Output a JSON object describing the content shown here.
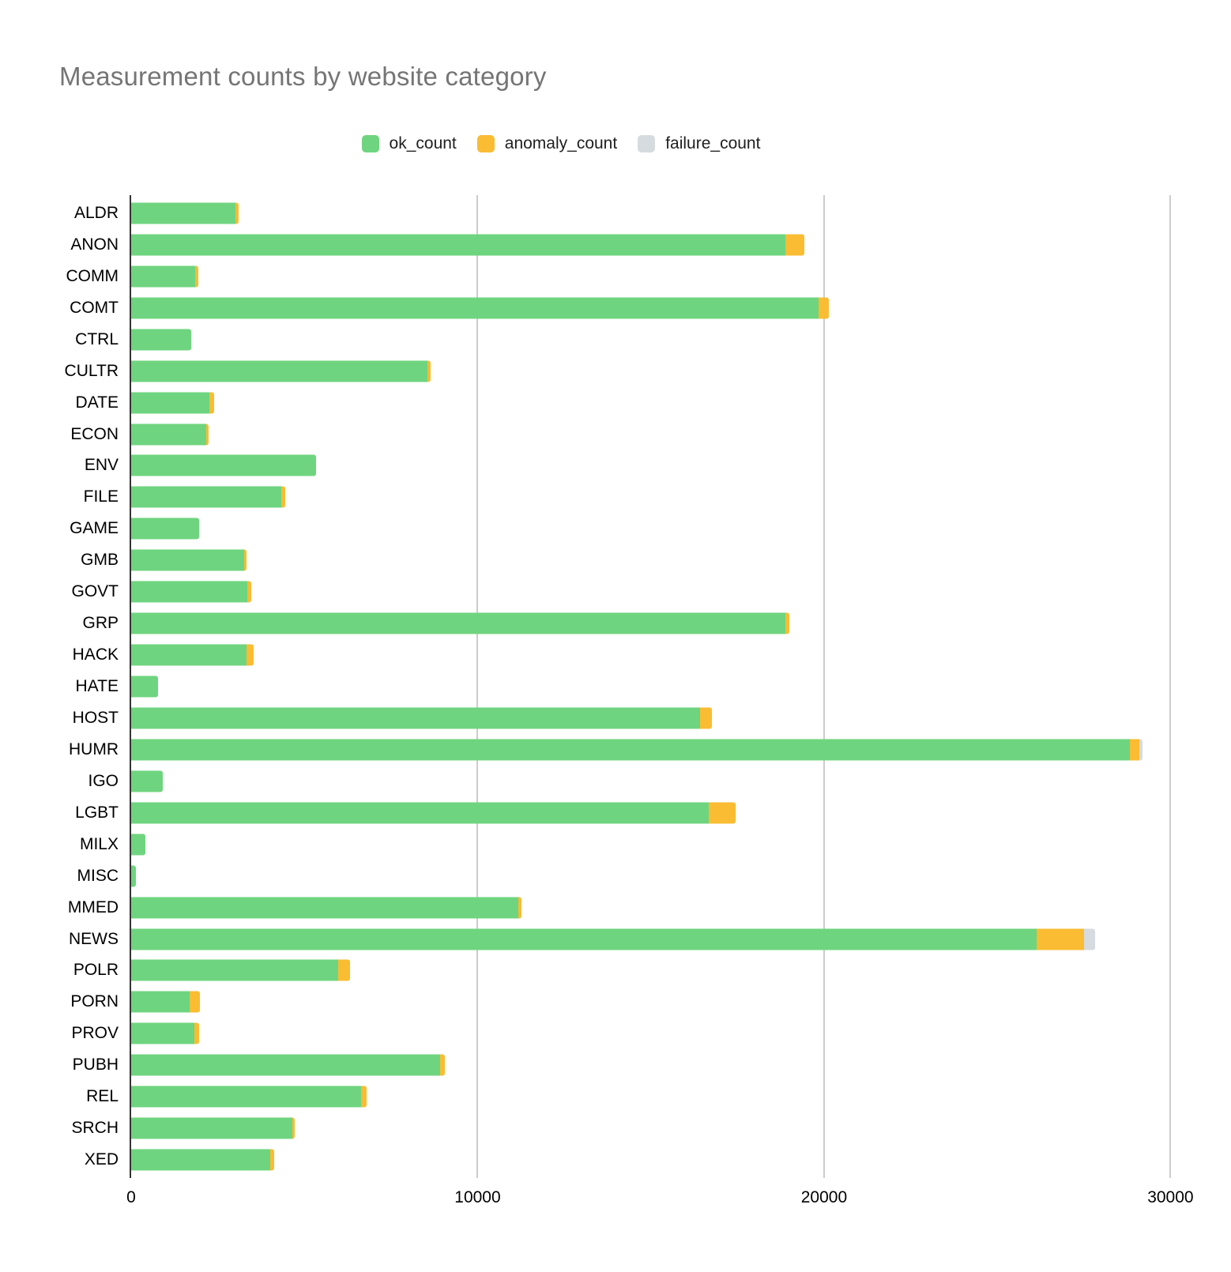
{
  "title": "Measurement counts by website category",
  "legend": {
    "items": [
      {
        "label": "ok_count",
        "color": "#6FD47F"
      },
      {
        "label": "anomaly_count",
        "color": "#F9BC33"
      },
      {
        "label": "failure_count",
        "color": "#D6DBE0"
      }
    ]
  },
  "chart_data": {
    "type": "bar",
    "orientation": "horizontal",
    "stacked": true,
    "title": "Measurement counts by website category",
    "xlabel": "",
    "ylabel": "",
    "categories": [
      "ALDR",
      "ANON",
      "COMM",
      "COMT",
      "CTRL",
      "CULTR",
      "DATE",
      "ECON",
      "ENV",
      "FILE",
      "GAME",
      "GMB",
      "GOVT",
      "GRP",
      "HACK",
      "HATE",
      "HOST",
      "HUMR",
      "IGO",
      "LGBT",
      "MILX",
      "MISC",
      "MMED",
      "NEWS",
      "POLR",
      "PORN",
      "PROV",
      "PUBH",
      "REL",
      "SRCH",
      "XED"
    ],
    "series": [
      {
        "name": "ok_count",
        "color": "#6FD47F",
        "values": [
          3010,
          18890,
          1850,
          19840,
          1730,
          8550,
          2260,
          2170,
          5340,
          4330,
          1960,
          3260,
          3350,
          18890,
          3330,
          780,
          16420,
          28830,
          910,
          16670,
          410,
          140,
          11180,
          26140,
          5980,
          1690,
          1820,
          8920,
          6640,
          4650,
          4010
        ]
      },
      {
        "name": "anomaly_count",
        "color": "#F9BC33",
        "values": [
          90,
          540,
          90,
          300,
          0,
          90,
          130,
          70,
          0,
          110,
          0,
          70,
          120,
          110,
          210,
          0,
          340,
          280,
          0,
          780,
          0,
          0,
          90,
          1370,
          340,
          290,
          140,
          140,
          160,
          70,
          120
        ]
      },
      {
        "name": "failure_count",
        "color": "#D6DBE0",
        "values": [
          0,
          0,
          0,
          0,
          0,
          0,
          0,
          0,
          0,
          0,
          0,
          0,
          0,
          0,
          0,
          0,
          0,
          90,
          0,
          0,
          0,
          0,
          0,
          320,
          0,
          0,
          0,
          0,
          0,
          0,
          0
        ]
      }
    ],
    "x_ticks": [
      0,
      10000,
      20000,
      30000
    ],
    "x_tick_labels": [
      "0",
      "10000",
      "20000",
      "30000"
    ],
    "xlim": [
      0,
      30880
    ],
    "grid": "vertical",
    "legend_position": "top-center",
    "colors": {
      "axis_line": "#333333",
      "gridline": "#CCCCCC",
      "title_text": "#757575",
      "tick_label_text": "#000000",
      "background": "#FFFFFF"
    }
  }
}
